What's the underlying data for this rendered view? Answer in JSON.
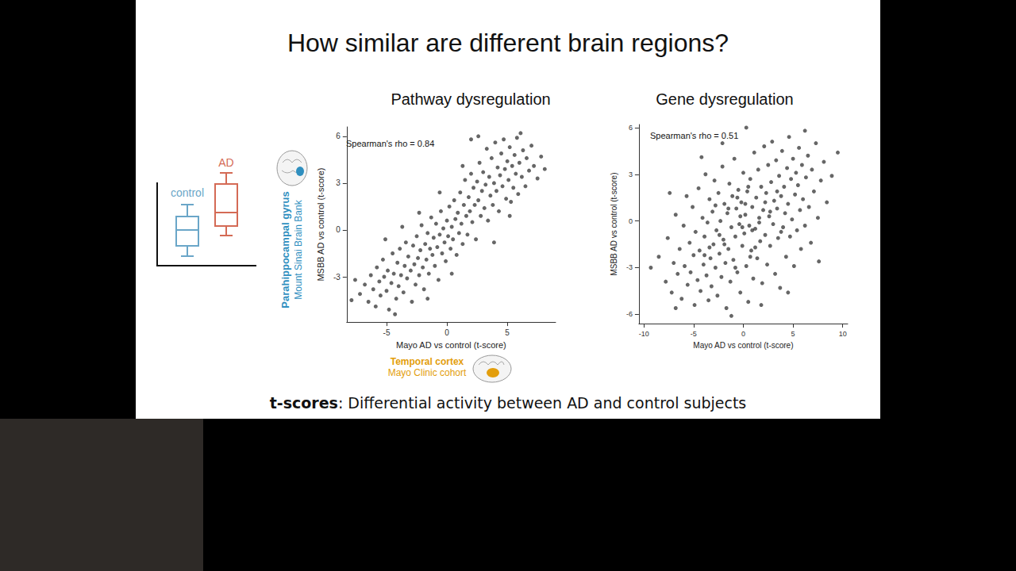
{
  "title": "How similar are different brain regions?",
  "footer": {
    "bold": "t-scores",
    "text": ": Differential activity between AD and control subjects"
  },
  "illustration": {
    "groups": [
      {
        "label": "control",
        "color": "#6aa6c8"
      },
      {
        "label": "AD",
        "color": "#d46a55"
      }
    ]
  },
  "region_labels": {
    "y": {
      "region": "Parahippocampal gyrus",
      "cohort": "Mount Sinai Brain Bank",
      "color": "#2f8fbf"
    },
    "x": {
      "region": "Temporal cortex",
      "cohort": "Mayo Clinic cohort",
      "color": "#e39e0c"
    }
  },
  "chart_data": [
    {
      "type": "scatter",
      "title": "Pathway dysregulation",
      "x_label": "Mayo AD vs control (t-score)",
      "y_label": "MSBB AD vs control (t-score)",
      "annotation": "Spearman's rho = 0.84",
      "color": "#000000",
      "marker": "circle",
      "xlim": [
        -8.3,
        9
      ],
      "xticks": [
        -5,
        0,
        5
      ],
      "ylim": [
        -5.9,
        6.6
      ],
      "yticks": [
        -3,
        0,
        3,
        6
      ],
      "x": [
        -7.2,
        -6.8,
        -6.5,
        -6.3,
        -6.1,
        -5.9,
        -5.8,
        -5.6,
        -5.5,
        -5.3,
        -5.2,
        -5.0,
        -4.9,
        -4.8,
        -4.6,
        -4.5,
        -4.4,
        -4.2,
        -4.1,
        -4.0,
        -3.9,
        -3.8,
        -3.6,
        -3.5,
        -3.4,
        -3.3,
        -3.2,
        -3.0,
        -2.9,
        -2.8,
        -2.7,
        -2.6,
        -2.5,
        -2.4,
        -2.3,
        -2.2,
        -2.1,
        -2.0,
        -1.9,
        -1.8,
        -1.7,
        -1.6,
        -1.5,
        -1.4,
        -1.3,
        -1.2,
        -1.1,
        -1.0,
        -0.9,
        -0.8,
        -0.7,
        -0.6,
        -0.5,
        -0.4,
        -0.3,
        -0.2,
        -0.1,
        0.0,
        0.1,
        0.2,
        0.3,
        0.4,
        0.5,
        0.6,
        0.7,
        0.8,
        0.9,
        1.0,
        1.1,
        1.2,
        1.3,
        1.4,
        1.5,
        1.6,
        1.7,
        1.8,
        1.9,
        2.0,
        2.1,
        2.2,
        2.3,
        2.4,
        2.5,
        2.6,
        2.7,
        2.8,
        2.9,
        3.0,
        3.1,
        3.2,
        3.3,
        3.4,
        3.5,
        3.6,
        3.7,
        3.8,
        3.9,
        4.0,
        4.1,
        4.2,
        4.3,
        4.4,
        4.5,
        4.6,
        4.7,
        4.8,
        4.9,
        5.0,
        5.1,
        5.2,
        5.3,
        5.4,
        5.5,
        5.6,
        5.7,
        5.8,
        5.9,
        6.0,
        6.2,
        6.3,
        6.5,
        6.6,
        6.8,
        7.0,
        7.2,
        7.5,
        7.8,
        8.1,
        -7.6,
        -7.9,
        2.0,
        2.6,
        1.3,
        -0.6,
        -2.3,
        3.9,
        5.2,
        -5.1,
        -3.7,
        -1.6,
        0.4,
        -4.3,
        6.1
      ],
      "values": [
        -4.1,
        -3.5,
        -4.6,
        -2.9,
        -3.8,
        -4.9,
        -2.4,
        -3.3,
        -4.2,
        -1.9,
        -3.0,
        -3.9,
        -2.6,
        -5.1,
        -3.4,
        -1.5,
        -2.8,
        -4.4,
        -2.1,
        -3.6,
        -1.2,
        -2.9,
        -4.0,
        -2.3,
        -0.8,
        -3.1,
        -1.7,
        -2.6,
        -4.6,
        -1.0,
        -2.2,
        -3.5,
        -0.4,
        -1.8,
        -2.9,
        -1.3,
        0.3,
        -2.4,
        -3.8,
        -0.9,
        -1.9,
        -0.2,
        -2.8,
        -1.2,
        0.8,
        -1.6,
        -0.5,
        -2.3,
        0.4,
        -1.1,
        -3.2,
        -0.3,
        1.2,
        -1.5,
        0.1,
        -0.8,
        -2.0,
        0.6,
        -0.4,
        1.5,
        -1.2,
        0.2,
        -0.6,
        1.9,
        0.7,
        -1.6,
        1.1,
        -0.2,
        2.4,
        0.4,
        -0.9,
        1.6,
        3.2,
        0.9,
        -0.3,
        2.1,
        1.2,
        3.6,
        0.5,
        2.7,
        1.6,
        -0.6,
        3.1,
        1.9,
        4.3,
        0.9,
        2.5,
        3.7,
        1.4,
        2.9,
        5.2,
        0.6,
        3.4,
        2.2,
        4.6,
        1.6,
        3.0,
        5.6,
        2.5,
        4.0,
        1.2,
        3.5,
        4.9,
        2.8,
        5.8,
        3.9,
        2.0,
        4.4,
        3.2,
        5.3,
        1.8,
        4.1,
        2.7,
        4.8,
        3.6,
        5.9,
        2.3,
        4.3,
        3.4,
        5.1,
        2.8,
        4.6,
        3.8,
        5.4,
        4.1,
        3.3,
        4.7,
        3.9,
        -3.2,
        -4.5,
        5.8,
        6.0,
        4.1,
        2.4,
        1.1,
        -0.8,
        0.9,
        -0.6,
        0.2,
        -4.4,
        -2.8,
        -5.4,
        6.2
      ]
    },
    {
      "type": "scatter",
      "title": "Gene dysregulation",
      "x_label": "Mayo AD vs control (t-score)",
      "y_label": "MSBB AD vs control (t-score)",
      "annotation": "Spearman's rho = 0.51",
      "color": "#000000",
      "marker": "circle",
      "xlim": [
        -10.5,
        10.5
      ],
      "xticks": [
        -10,
        -5,
        0,
        5,
        10
      ],
      "ylim": [
        -6.6,
        6.2
      ],
      "yticks": [
        -6,
        -3,
        0,
        3,
        6
      ],
      "x": [
        -8.5,
        -7.8,
        -7.6,
        -7.2,
        -7.0,
        -6.8,
        -6.6,
        -6.4,
        -6.2,
        -6.0,
        -5.9,
        -5.7,
        -5.6,
        -5.4,
        -5.3,
        -5.1,
        -5.0,
        -4.9,
        -4.8,
        -4.6,
        -4.5,
        -4.4,
        -4.3,
        -4.1,
        -4.0,
        -3.9,
        -3.8,
        -3.7,
        -3.6,
        -3.5,
        -3.4,
        -3.3,
        -3.2,
        -3.1,
        -3.0,
        -2.9,
        -2.8,
        -2.7,
        -2.6,
        -2.5,
        -2.4,
        -2.3,
        -2.2,
        -2.1,
        -2.0,
        -1.9,
        -1.8,
        -1.7,
        -1.6,
        -1.5,
        -1.4,
        -1.3,
        -1.2,
        -1.1,
        -1.0,
        -0.9,
        -0.8,
        -0.7,
        -0.6,
        -0.5,
        -0.4,
        -0.3,
        -0.2,
        -0.1,
        0.0,
        0.1,
        0.2,
        0.3,
        0.4,
        0.5,
        0.6,
        0.7,
        0.8,
        0.9,
        1.0,
        1.1,
        1.2,
        1.3,
        1.4,
        1.5,
        1.6,
        1.7,
        1.8,
        1.9,
        2.0,
        2.1,
        2.2,
        2.3,
        2.4,
        2.5,
        2.6,
        2.7,
        2.8,
        2.9,
        3.0,
        3.1,
        3.2,
        3.3,
        3.4,
        3.5,
        3.6,
        3.7,
        3.8,
        3.9,
        4.0,
        4.1,
        4.2,
        4.3,
        4.4,
        4.5,
        4.6,
        4.7,
        4.8,
        4.9,
        5.0,
        5.1,
        5.2,
        5.3,
        5.4,
        5.5,
        5.6,
        5.7,
        5.8,
        5.9,
        6.0,
        6.2,
        6.3,
        6.5,
        6.6,
        6.8,
        6.9,
        7.1,
        7.3,
        7.5,
        7.8,
        8.1,
        8.4,
        8.9,
        9.5,
        -9.3,
        0.3,
        -1.2,
        -7.4,
        7.6,
        -4.2,
        4.5,
        1.8,
        -2.1,
        -6.8,
        6.2,
        -0.8,
        0.5,
        -1.5,
        1.2,
        -0.3,
        0.9,
        -2.4,
        2.2,
        -3.4,
        3.4,
        -0.6,
        0.7,
        1.6,
        -1.9,
        -0.1,
        0.2,
        -2.8,
        2.7,
        -3.9,
        3.8
      ],
      "values": [
        -2.3,
        -3.9,
        -1.1,
        -4.6,
        -2.7,
        0.4,
        -3.4,
        -1.8,
        -5.0,
        -0.3,
        -2.9,
        1.6,
        -4.1,
        -1.4,
        -3.3,
        0.9,
        -2.2,
        -5.4,
        -0.7,
        -3.8,
        2.1,
        -1.9,
        -4.5,
        0.2,
        -2.8,
        -1.0,
        3.0,
        -3.5,
        -0.1,
        -5.1,
        1.4,
        -2.4,
        -4.2,
        0.6,
        -1.5,
        2.6,
        -3.0,
        -0.6,
        -4.8,
        1.8,
        -2.1,
        0.0,
        -3.6,
        3.5,
        -1.2,
        1.1,
        -2.7,
        -5.6,
        0.5,
        -1.8,
        2.4,
        -3.9,
        -0.4,
        1.6,
        -2.5,
        4.0,
        -1.0,
        0.8,
        -3.3,
        2.0,
        -0.2,
        -4.6,
        1.2,
        -1.6,
        3.1,
        -0.8,
        0.4,
        -2.9,
        1.9,
        -5.2,
        -0.3,
        2.7,
        -1.9,
        0.9,
        -3.7,
        4.4,
        -0.5,
        1.5,
        -2.4,
        3.3,
        0.2,
        -1.3,
        2.2,
        -4.0,
        0.7,
        4.8,
        -0.9,
        1.8,
        -2.8,
        3.6,
        0.3,
        -1.6,
        2.5,
        5.1,
        -0.2,
        1.3,
        -3.4,
        3.9,
        0.8,
        -1.1,
        2.9,
        -4.3,
        1.6,
        4.5,
        -0.4,
        2.2,
        0.5,
        -2.3,
        3.4,
        1.1,
        5.4,
        -1.0,
        2.7,
        0.1,
        4.0,
        -2.9,
        1.7,
        3.1,
        -0.6,
        2.3,
        4.7,
        0.7,
        -1.8,
        3.6,
        1.4,
        -0.3,
        2.8,
        4.2,
        0.9,
        -1.4,
        3.3,
        1.9,
        5.0,
        0.2,
        2.6,
        3.8,
        1.2,
        2.9,
        4.4,
        -3.0,
        6.0,
        -6.1,
        1.8,
        -2.6,
        4.1,
        -4.6,
        -5.4,
        5.0,
        -5.6,
        5.8,
        -3.0,
        2.2,
        0.8,
        -1.7,
        0.3,
        -0.6,
        -0.9,
        1.2,
        -1.7,
        1.9,
        1.5,
        -2.3,
        -0.1,
        -1.5,
        -0.4,
        1.1,
        1.0,
        0.6,
        -2.2,
        -0.7
      ]
    }
  ]
}
